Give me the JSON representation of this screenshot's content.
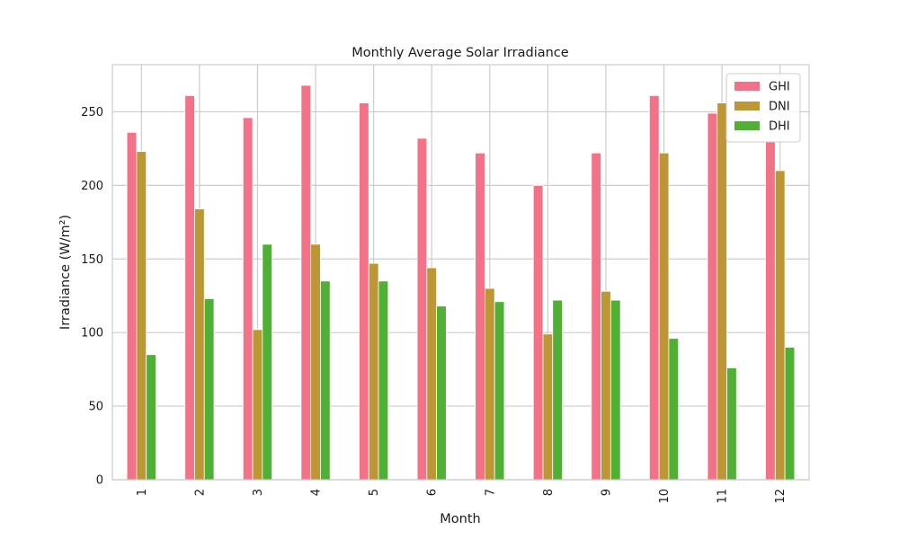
{
  "chart_data": {
    "type": "bar",
    "title": "Monthly Average Solar Irradiance",
    "xlabel": "Month",
    "ylabel": "Irradiance (W/m²)",
    "categories": [
      "1",
      "2",
      "3",
      "4",
      "5",
      "6",
      "7",
      "8",
      "9",
      "10",
      "11",
      "12"
    ],
    "series": [
      {
        "name": "GHI",
        "color": "#f37287",
        "values": [
          236,
          261,
          246,
          268,
          256,
          232,
          222,
          200,
          222,
          261,
          249,
          230
        ]
      },
      {
        "name": "DNI",
        "color": "#bd9636",
        "values": [
          223,
          184,
          102,
          160,
          147,
          144,
          130,
          99,
          128,
          222,
          256,
          210
        ]
      },
      {
        "name": "DHI",
        "color": "#4fb035",
        "values": [
          85,
          123,
          160,
          135,
          135,
          118,
          121,
          122,
          122,
          96,
          76,
          90
        ]
      }
    ],
    "ylim": [
      0,
      282
    ],
    "yticks": [
      0,
      50,
      100,
      150,
      200,
      250
    ],
    "grid": true,
    "legend": "top-right"
  }
}
